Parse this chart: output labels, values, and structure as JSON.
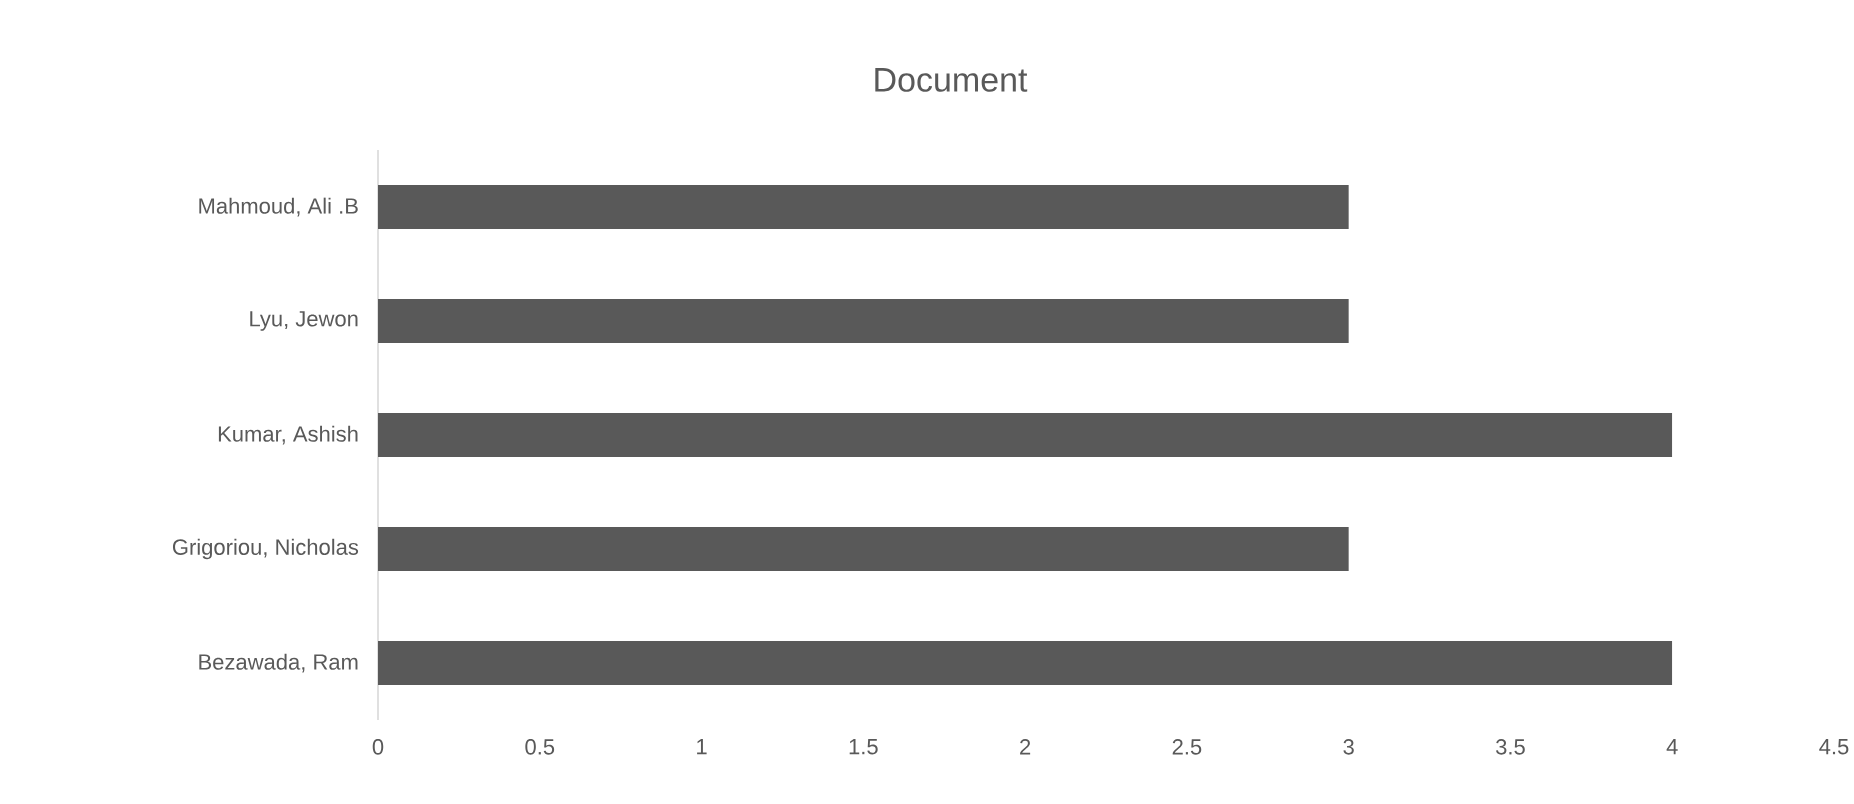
{
  "chart_data": {
    "type": "bar",
    "orientation": "horizontal",
    "title": "Document",
    "categories": [
      "Mahmoud, Ali .B",
      "Lyu, Jewon",
      "Kumar, Ashish",
      "Grigoriou, Nicholas",
      "Bezawada, Ram"
    ],
    "values": [
      3,
      3,
      4,
      3,
      4
    ],
    "color": "#595959",
    "xlim": [
      0,
      4.5
    ],
    "xticks": [
      0,
      0.5,
      1,
      1.5,
      2,
      2.5,
      3,
      3.5,
      4,
      4.5
    ],
    "grid": false
  }
}
